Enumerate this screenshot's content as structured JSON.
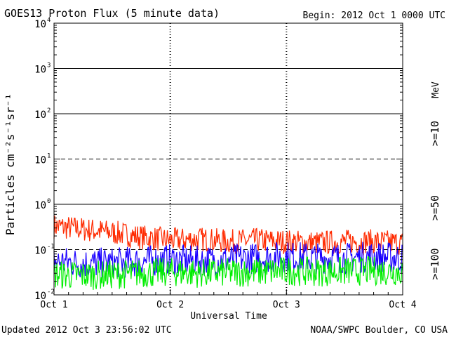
{
  "header": {
    "title": "GOES13 Proton Flux (5 minute data)",
    "begin": "Begin: 2012 Oct 1 0000 UTC"
  },
  "footer": {
    "updated": "Updated 2012 Oct  3 23:56:02 UTC",
    "credit": "NOAA/SWPC Boulder, CO USA"
  },
  "chart_data": {
    "type": "line",
    "title": "GOES13 Proton Flux (5 minute data)",
    "xlabel": "Universal Time",
    "ylabel": "Particles cm⁻²s⁻¹sr⁻¹",
    "yscale": "log",
    "ylim": [
      0.01,
      10000
    ],
    "xlim": [
      "Oct 1",
      "Oct 4"
    ],
    "x_ticks": [
      "Oct 1",
      "Oct 2",
      "Oct 3",
      "Oct 4"
    ],
    "y_ticks": [
      {
        "base": "10",
        "exp": "4"
      },
      {
        "base": "10",
        "exp": "3"
      },
      {
        "base": "10",
        "exp": "2"
      },
      {
        "base": "10",
        "exp": "1"
      },
      {
        "base": "10",
        "exp": "0"
      },
      {
        "base": "10",
        "exp": "-1"
      },
      {
        "base": "10",
        "exp": "-2"
      }
    ],
    "grid": "horizontal lines at each decade (dashed at 10^1 and 10^-1)",
    "legend_placement": "right side, vertical",
    "legend_unit": "MeV",
    "series": [
      {
        "name": ">=10",
        "color": "#ff2a00",
        "x": [
          "Oct 1 00:00",
          "Oct 1 06:00",
          "Oct 1 12:00",
          "Oct 1 18:00",
          "Oct 2 00:00",
          "Oct 2 06:00",
          "Oct 2 12:00",
          "Oct 2 18:00",
          "Oct 3 00:00",
          "Oct 3 06:00",
          "Oct 3 12:00",
          "Oct 3 18:00",
          "Oct 4 00:00"
        ],
        "values": [
          0.33,
          0.28,
          0.24,
          0.19,
          0.16,
          0.17,
          0.15,
          0.16,
          0.15,
          0.14,
          0.15,
          0.15,
          0.14
        ]
      },
      {
        "name": ">=50",
        "color": "#1a00ff",
        "x": [
          "Oct 1 00:00",
          "Oct 1 06:00",
          "Oct 1 12:00",
          "Oct 1 18:00",
          "Oct 2 00:00",
          "Oct 2 06:00",
          "Oct 2 12:00",
          "Oct 2 18:00",
          "Oct 3 00:00",
          "Oct 3 06:00",
          "Oct 3 12:00",
          "Oct 3 18:00",
          "Oct 4 00:00"
        ],
        "values": [
          0.055,
          0.05,
          0.05,
          0.055,
          0.06,
          0.055,
          0.06,
          0.065,
          0.07,
          0.065,
          0.065,
          0.07,
          0.065
        ]
      },
      {
        "name": ">=100",
        "color": "#00ee00",
        "x": [
          "Oct 1 00:00",
          "Oct 1 06:00",
          "Oct 1 12:00",
          "Oct 1 18:00",
          "Oct 2 00:00",
          "Oct 2 06:00",
          "Oct 2 12:00",
          "Oct 2 18:00",
          "Oct 3 00:00",
          "Oct 3 06:00",
          "Oct 3 12:00",
          "Oct 3 18:00",
          "Oct 4 00:00"
        ],
        "values": [
          0.028,
          0.027,
          0.028,
          0.03,
          0.032,
          0.03,
          0.031,
          0.032,
          0.034,
          0.032,
          0.033,
          0.034,
          0.033
        ]
      }
    ]
  }
}
